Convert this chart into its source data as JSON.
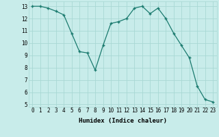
{
  "x": [
    0,
    1,
    2,
    3,
    4,
    5,
    6,
    7,
    8,
    9,
    10,
    11,
    12,
    13,
    14,
    15,
    16,
    17,
    18,
    19,
    20,
    21,
    22,
    23
  ],
  "y": [
    13.0,
    13.0,
    12.85,
    12.6,
    12.3,
    10.8,
    9.3,
    9.2,
    7.8,
    9.8,
    11.6,
    11.75,
    12.0,
    12.85,
    13.0,
    12.4,
    12.85,
    12.0,
    10.8,
    9.8,
    8.8,
    6.5,
    5.4,
    5.2
  ],
  "line_color": "#1a7a6e",
  "marker": "+",
  "bg_color": "#c8ecea",
  "grid_color": "#a8d8d4",
  "xlabel": "Humidex (Indice chaleur)",
  "ylim": [
    4.8,
    13.4
  ],
  "xlim": [
    -0.5,
    23.5
  ],
  "yticks": [
    5,
    6,
    7,
    8,
    9,
    10,
    11,
    12,
    13
  ],
  "xticks": [
    0,
    1,
    2,
    3,
    4,
    5,
    6,
    7,
    8,
    9,
    10,
    11,
    12,
    13,
    14,
    15,
    16,
    17,
    18,
    19,
    20,
    21,
    22,
    23
  ],
  "label_fontsize": 6.5,
  "tick_fontsize": 5.5
}
